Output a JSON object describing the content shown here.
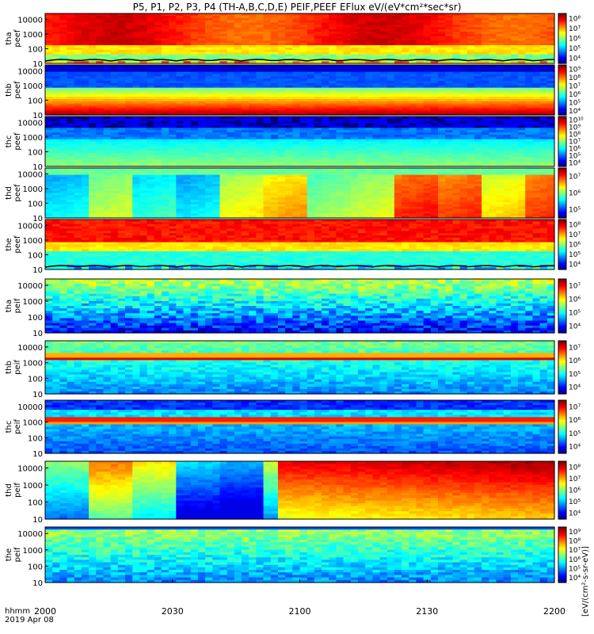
{
  "title": "P5, P1, P2, P3, P4 (TH-A,B,C,D,E) PEIF,PEEF EFlux eV/(eV*cm²*sec*sr)",
  "time_axis": {
    "label_unit": "hhmm",
    "date": "2019 Apr 08",
    "tick_labels": [
      "2000",
      "2030",
      "2100",
      "2130",
      "2200"
    ]
  },
  "colorbar_label": "[eV/(cm²-s-sr-eV)]",
  "colors": {
    "background": "#ffffff",
    "border": "#000000"
  },
  "chart_data": {
    "type": "heatmap",
    "x_range": [
      "2000",
      "2200"
    ],
    "y_scale": "log",
    "y_ticks": [
      "10",
      "100",
      "1000",
      "10000"
    ],
    "panels": [
      {
        "label": "tha peef",
        "cbar_ticks": [
          "10⁴",
          "10⁵",
          "10⁶",
          "10⁷",
          "10⁸"
        ],
        "pattern": "tha_e"
      },
      {
        "label": "thb peef",
        "cbar_ticks": [
          "10⁴",
          "10⁵",
          "10⁶",
          "10⁷",
          "10⁸",
          "10⁹"
        ],
        "pattern": "thb_e"
      },
      {
        "label": "thc peef",
        "cbar_ticks": [
          "10⁴",
          "10⁵",
          "10⁶",
          "10⁷",
          "10⁸",
          "10⁹",
          "10¹⁰"
        ],
        "pattern": "thc_e"
      },
      {
        "label": "thd peef",
        "cbar_ticks": [
          "10⁵",
          "10⁶",
          "10⁷"
        ],
        "pattern": "thd_e"
      },
      {
        "label": "the peef",
        "cbar_ticks": [
          "10⁴",
          "10⁵",
          "10⁶",
          "10⁷",
          "10⁸"
        ],
        "pattern": "the_e"
      },
      {
        "label": "tha peif",
        "cbar_ticks": [
          "10⁴",
          "10⁵",
          "10⁶",
          "10⁷"
        ],
        "pattern": "tha_i"
      },
      {
        "label": "thb peif",
        "cbar_ticks": [
          "10⁴",
          "10⁵",
          "10⁶",
          "10⁷"
        ],
        "pattern": "thb_i"
      },
      {
        "label": "thc peif",
        "cbar_ticks": [
          "10⁴",
          "10⁵",
          "10⁶",
          "10⁷"
        ],
        "pattern": "thc_i"
      },
      {
        "label": "thd peif",
        "cbar_ticks": [
          "10⁴",
          "10⁵",
          "10⁶",
          "10⁷",
          "10⁸"
        ],
        "pattern": "thd_i"
      },
      {
        "label": "the peif",
        "cbar_ticks": [
          "10⁴",
          "10⁵",
          "10⁶",
          "10⁷",
          "10⁸",
          "10⁹"
        ],
        "pattern": "the_i"
      }
    ]
  }
}
